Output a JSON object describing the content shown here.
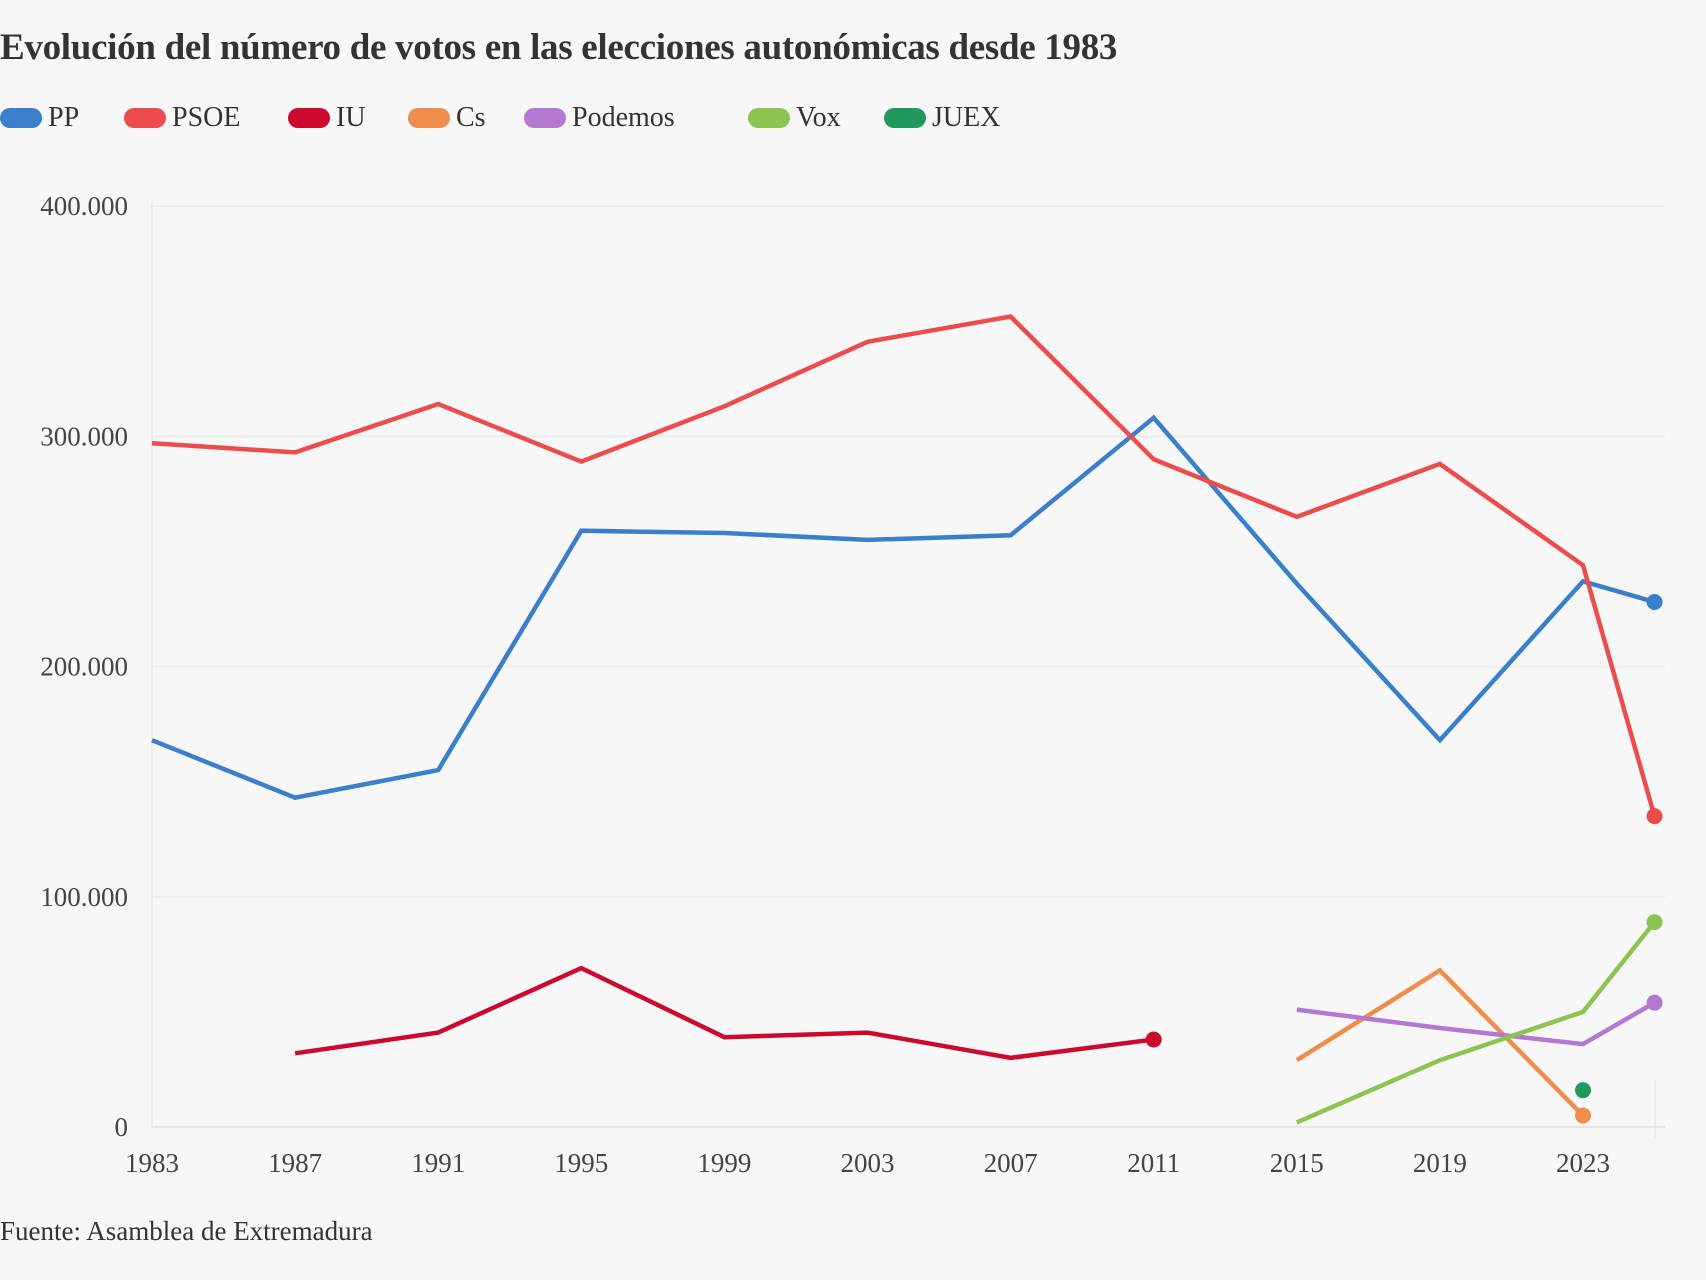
{
  "title": "Evolución del número de votos en las elecciones autonómicas desde 1983",
  "source": "Fuente: Asamblea de Extremadura",
  "legend": [
    {
      "label": "PP",
      "color": "#3a7fcb"
    },
    {
      "label": "PSOE",
      "color": "#ec4c4c"
    },
    {
      "label": "IU",
      "color": "#cc0a2e"
    },
    {
      "label": "Cs",
      "color": "#f08c4c"
    },
    {
      "label": "Podemos",
      "color": "#b478d2"
    },
    {
      "label": "Vox",
      "color": "#8cc452"
    },
    {
      "label": "JUEX",
      "color": "#22995c"
    }
  ],
  "chart_data": {
    "type": "line",
    "title": "Evolución del número de votos en las elecciones autonómicas desde 1983",
    "xlabel": "",
    "ylabel": "",
    "x_ticks": [
      "1983",
      "1987",
      "1991",
      "1995",
      "1999",
      "2003",
      "2007",
      "2011",
      "2015",
      "2019",
      "2023"
    ],
    "y_ticks": [
      "0",
      "100.000",
      "200.000",
      "300.000",
      "400.000"
    ],
    "xlim": [
      1983,
      2025
    ],
    "ylim": [
      0,
      400000
    ],
    "grid": true,
    "legend_position": "top-left",
    "series": [
      {
        "name": "PP",
        "color": "#3a7fcb",
        "points": [
          [
            1983,
            168000
          ],
          [
            1987,
            143000
          ],
          [
            1991,
            155000
          ],
          [
            1995,
            259000
          ],
          [
            1999,
            258000
          ],
          [
            2003,
            255000
          ],
          [
            2007,
            257000
          ],
          [
            2011,
            308000
          ],
          [
            2015,
            236000
          ],
          [
            2019,
            168000
          ],
          [
            2023,
            237000
          ],
          [
            2025,
            228000
          ]
        ]
      },
      {
        "name": "PSOE",
        "color": "#ec4c4c",
        "points": [
          [
            1983,
            297000
          ],
          [
            1987,
            293000
          ],
          [
            1991,
            314000
          ],
          [
            1995,
            289000
          ],
          [
            1999,
            313000
          ],
          [
            2003,
            341000
          ],
          [
            2007,
            352000
          ],
          [
            2011,
            290000
          ],
          [
            2015,
            265000
          ],
          [
            2019,
            288000
          ],
          [
            2023,
            244000
          ],
          [
            2025,
            135000
          ]
        ]
      },
      {
        "name": "IU",
        "color": "#cc0a2e",
        "points": [
          [
            1987,
            32000
          ],
          [
            1991,
            41000
          ],
          [
            1995,
            69000
          ],
          [
            1999,
            39000
          ],
          [
            2003,
            41000
          ],
          [
            2007,
            30000
          ],
          [
            2011,
            38000
          ]
        ]
      },
      {
        "name": "Cs",
        "color": "#f08c4c",
        "points": [
          [
            2015,
            29000
          ],
          [
            2019,
            68000
          ],
          [
            2023,
            5000
          ]
        ]
      },
      {
        "name": "Podemos",
        "color": "#b478d2",
        "points": [
          [
            2015,
            51000
          ],
          [
            2019,
            43000
          ],
          [
            2023,
            36000
          ],
          [
            2025,
            54000
          ]
        ]
      },
      {
        "name": "Vox",
        "color": "#8cc452",
        "points": [
          [
            2015,
            2000
          ],
          [
            2019,
            29000
          ],
          [
            2023,
            50000
          ],
          [
            2025,
            89000
          ]
        ]
      },
      {
        "name": "JUEX",
        "color": "#22995c",
        "points": [
          [
            2023,
            16000
          ]
        ]
      }
    ]
  }
}
